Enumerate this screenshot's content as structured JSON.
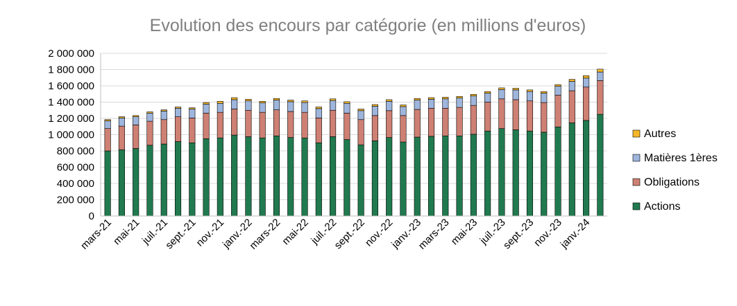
{
  "chart_data": {
    "type": "bar",
    "stacked": true,
    "title": "Evolution des encours par catégorie (en millions d'euros)",
    "xlabel": "",
    "ylabel": "",
    "ylim": [
      0,
      2000000
    ],
    "yticks": [
      0,
      200000,
      400000,
      600000,
      800000,
      1000000,
      1200000,
      1400000,
      1600000,
      1800000,
      2000000
    ],
    "ytick_labels": [
      "0",
      "200 000",
      "400 000",
      "600 000",
      "800 000",
      "1 000 000",
      "1 200 000",
      "1 400 000",
      "1 600 000",
      "1 800 000",
      "2 000 000"
    ],
    "grid": true,
    "legend_position": "right",
    "categories": [
      "mars-21",
      "avr.-21",
      "mai-21",
      "juin-21",
      "juil.-21",
      "août-21",
      "sept.-21",
      "oct.-21",
      "nov.-21",
      "déc.-21",
      "janv.-22",
      "févr.-22",
      "mars-22",
      "avr.-22",
      "mai-22",
      "juin-22",
      "juil.-22",
      "août-22",
      "sept.-22",
      "oct.-22",
      "nov.-22",
      "déc.-22",
      "janv.-23",
      "févr.-23",
      "mars-23",
      "avr.-23",
      "mai-23",
      "juin-23",
      "juil.-23",
      "août-23",
      "sept.-23",
      "oct.-23",
      "nov.-23",
      "déc.-23",
      "janv.-24",
      "févr.-24"
    ],
    "tick_labels": [
      "mars-21",
      "",
      "mai-21",
      "",
      "juil.-21",
      "",
      "sept.-21",
      "",
      "nov.-21",
      "",
      "janv.-22",
      "",
      "mars-22",
      "",
      "mai-22",
      "",
      "juil.-22",
      "",
      "sept.-22",
      "",
      "nov.-22",
      "",
      "janv.-23",
      "",
      "mars-23",
      "",
      "mai-23",
      "",
      "juil.-23",
      "",
      "sept.-23",
      "",
      "nov.-23",
      "",
      "janv.-24",
      ""
    ],
    "series": [
      {
        "name": "Actions",
        "color": "#217a4f",
        "values": [
          800000,
          815000,
          830000,
          870000,
          885000,
          915000,
          900000,
          950000,
          960000,
          995000,
          975000,
          960000,
          985000,
          965000,
          960000,
          900000,
          975000,
          940000,
          875000,
          925000,
          965000,
          910000,
          970000,
          980000,
          985000,
          985000,
          1005000,
          1045000,
          1075000,
          1060000,
          1045000,
          1030000,
          1095000,
          1145000,
          1175000,
          1250000
        ]
      },
      {
        "name": "Obligations",
        "color": "#cd8073",
        "values": [
          275000,
          290000,
          290000,
          295000,
          300000,
          305000,
          305000,
          315000,
          315000,
          320000,
          325000,
          315000,
          320000,
          320000,
          315000,
          305000,
          325000,
          325000,
          310000,
          310000,
          330000,
          325000,
          340000,
          345000,
          340000,
          350000,
          355000,
          355000,
          365000,
          370000,
          370000,
          365000,
          390000,
          395000,
          410000,
          415000
        ]
      },
      {
        "name": "Matières 1ères",
        "color": "#9eb5dc",
        "values": [
          95000,
          100000,
          100000,
          100000,
          105000,
          105000,
          110000,
          110000,
          110000,
          115000,
          115000,
          115000,
          120000,
          120000,
          120000,
          115000,
          120000,
          120000,
          110000,
          115000,
          115000,
          110000,
          115000,
          110000,
          115000,
          115000,
          115000,
          110000,
          115000,
          120000,
          115000,
          115000,
          110000,
          115000,
          110000,
          105000
        ]
      },
      {
        "name": "Autres",
        "color": "#f5b82b",
        "values": [
          15000,
          15000,
          15000,
          15000,
          15000,
          15000,
          15000,
          20000,
          25000,
          25000,
          20000,
          20000,
          20000,
          20000,
          20000,
          20000,
          20000,
          20000,
          20000,
          20000,
          20000,
          20000,
          20000,
          20000,
          20000,
          20000,
          20000,
          20000,
          20000,
          20000,
          20000,
          20000,
          20000,
          25000,
          30000,
          35000
        ]
      }
    ]
  }
}
